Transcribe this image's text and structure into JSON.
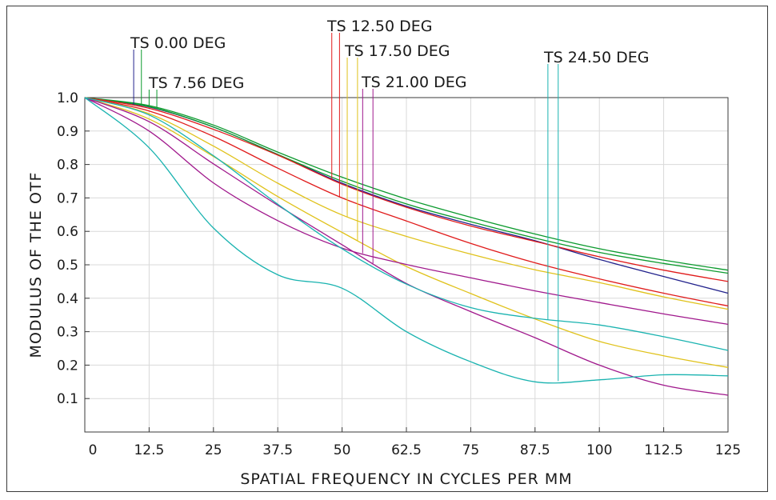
{
  "chart_data": {
    "type": "line",
    "xlabel": "SPATIAL FREQUENCY IN CYCLES PER MM",
    "ylabel": "MODULUS OF THE OTF",
    "xlim": [
      0,
      125
    ],
    "ylim": [
      0,
      1.0
    ],
    "x_ticks": [
      "0",
      "12.5",
      "25",
      "37.5",
      "50",
      "62.5",
      "75",
      "87.5",
      "100",
      "112.5",
      "125"
    ],
    "y_ticks": [
      "0.1",
      "0.2",
      "0.3",
      "0.4",
      "0.5",
      "0.6",
      "0.7",
      "0.8",
      "0.9",
      "1.0"
    ],
    "grid": true,
    "x": [
      0,
      12.5,
      25,
      37.5,
      50,
      62.5,
      75,
      87.5,
      100,
      112.5,
      125
    ],
    "field_labels": [
      {
        "text": "TS 0.00 DEG",
        "color": "#22228c",
        "color2": "#0c9a2e",
        "t_freq": 9.5,
        "s_freq": 11
      },
      {
        "text": "TS 7.56 DEG",
        "color": "#0c9a2e",
        "color2": "#0c9a2e",
        "t_freq": 12.5,
        "s_freq": 14
      },
      {
        "text": "TS 12.50 DEG",
        "color": "#e01b1b",
        "color2": "#e01b1b",
        "t_freq": 48,
        "s_freq": 49.5
      },
      {
        "text": "TS 17.50 DEG",
        "color": "#e0c21b",
        "color2": "#e0c21b",
        "t_freq": 51,
        "s_freq": 53
      },
      {
        "text": "TS 21.00 DEG",
        "color": "#a0188c",
        "color2": "#a0188c",
        "t_freq": 54,
        "s_freq": 56
      },
      {
        "text": "TS 24.50 DEG",
        "color": "#1ab3b0",
        "color2": "#1ab3b0",
        "t_freq": 90,
        "s_freq": 92
      }
    ],
    "series": [
      {
        "color": "#22228c",
        "values": [
          1.0,
          0.972,
          0.912,
          0.83,
          0.744,
          0.675,
          0.621,
          0.572,
          0.516,
          0.465,
          0.415
        ]
      },
      {
        "color": "#0c9a2e",
        "values": [
          1.0,
          0.973,
          0.912,
          0.83,
          0.75,
          0.682,
          0.629,
          0.58,
          0.537,
          0.504,
          0.475
        ]
      },
      {
        "color": "#0c9a2e",
        "values": [
          1.0,
          0.976,
          0.918,
          0.837,
          0.762,
          0.697,
          0.642,
          0.592,
          0.548,
          0.514,
          0.484
        ]
      },
      {
        "color": "#e01b1b",
        "values": [
          1.0,
          0.968,
          0.905,
          0.828,
          0.741,
          0.672,
          0.616,
          0.57,
          0.524,
          0.484,
          0.45
        ]
      },
      {
        "color": "#e01b1b",
        "values": [
          1.0,
          0.96,
          0.884,
          0.789,
          0.7,
          0.631,
          0.564,
          0.506,
          0.458,
          0.415,
          0.377
        ]
      },
      {
        "color": "#e0c21b",
        "values": [
          1.0,
          0.952,
          0.855,
          0.744,
          0.649,
          0.585,
          0.532,
          0.485,
          0.447,
          0.404,
          0.367
        ]
      },
      {
        "color": "#e0c21b",
        "values": [
          1.0,
          0.936,
          0.824,
          0.704,
          0.597,
          0.495,
          0.414,
          0.338,
          0.271,
          0.228,
          0.193
        ]
      },
      {
        "color": "#a0188c",
        "values": [
          1.0,
          0.9,
          0.745,
          0.632,
          0.55,
          0.501,
          0.461,
          0.422,
          0.387,
          0.353,
          0.322
        ]
      },
      {
        "color": "#a0188c",
        "values": [
          1.0,
          0.928,
          0.802,
          0.678,
          0.56,
          0.444,
          0.36,
          0.282,
          0.2,
          0.14,
          0.11
        ]
      },
      {
        "color": "#1ab3b0",
        "values": [
          1.0,
          0.948,
          0.826,
          0.681,
          0.548,
          0.442,
          0.372,
          0.34,
          0.32,
          0.285,
          0.244
        ]
      },
      {
        "color": "#1ab3b0",
        "values": [
          1.0,
          0.85,
          0.61,
          0.47,
          0.43,
          0.3,
          0.21,
          0.15,
          0.156,
          0.171,
          0.168
        ]
      }
    ]
  }
}
